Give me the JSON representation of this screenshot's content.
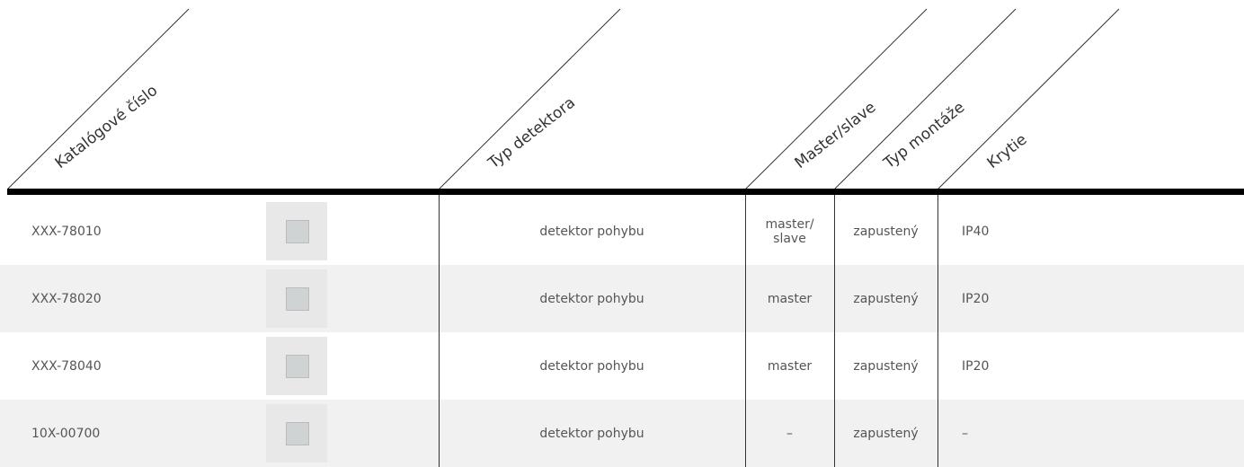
{
  "header": {
    "columns": [
      "Katalógové číslo",
      "Typ detektora",
      "Master/slave",
      "Typ montáže",
      "Krytie"
    ]
  },
  "table": {
    "rows": [
      [
        "XXX-78010",
        "detektor pohybu",
        "master/ slave",
        "zapustený",
        "IP40"
      ],
      [
        "XXX-78020",
        "detektor pohybu",
        "master",
        "zapustený",
        "IP20"
      ],
      [
        "XXX-78040",
        "detektor pohybu",
        "master",
        "zapustený",
        "IP20"
      ],
      [
        "10X-00700",
        "detektor pohybu",
        "–",
        "zapustený",
        "–"
      ]
    ]
  }
}
